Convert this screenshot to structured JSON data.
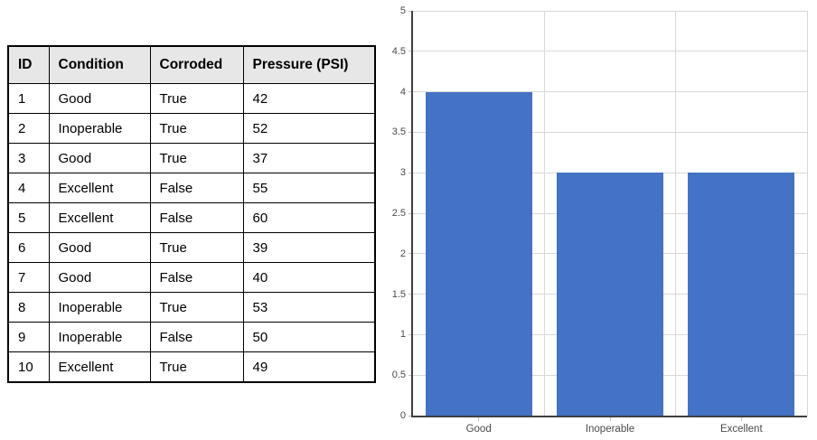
{
  "table": {
    "headers": [
      "ID",
      "Condition",
      "Corroded",
      "Pressure (PSI)"
    ],
    "rows": [
      [
        "1",
        "Good",
        "True",
        "42"
      ],
      [
        "2",
        "Inoperable",
        "True",
        "52"
      ],
      [
        "3",
        "Good",
        "True",
        "37"
      ],
      [
        "4",
        "Excellent",
        "False",
        "55"
      ],
      [
        "5",
        "Excellent",
        "False",
        "60"
      ],
      [
        "6",
        "Good",
        "True",
        "39"
      ],
      [
        "7",
        "Good",
        "False",
        "40"
      ],
      [
        "8",
        "Inoperable",
        "True",
        "53"
      ],
      [
        "9",
        "Inoperable",
        "False",
        "50"
      ],
      [
        "10",
        "Excellent",
        "True",
        "49"
      ]
    ],
    "header_bg": "#e7e7e7",
    "border_color": "#000000"
  },
  "chart_data": {
    "type": "bar",
    "categories": [
      "Good",
      "Inoperable",
      "Excellent"
    ],
    "values": [
      4,
      3,
      3
    ],
    "title": "",
    "xlabel": "",
    "ylabel": "",
    "ylim": [
      0,
      5
    ],
    "ytick_step": 0.5,
    "grid": true,
    "legend": "none",
    "bar_color": "#4472C4",
    "gridline_color": "#D9D9D9",
    "axis_color": "#404040",
    "tick_color": "#BFBFBF",
    "label_color": "#4a4a4a"
  }
}
